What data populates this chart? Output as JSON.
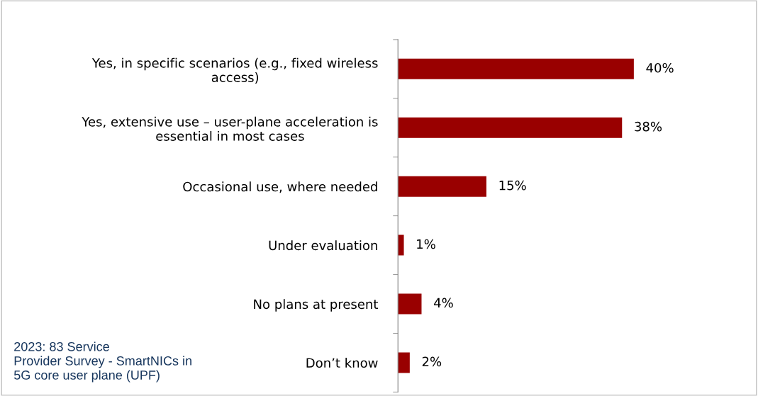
{
  "chart_data": {
    "type": "bar",
    "orientation": "horizontal",
    "categories": [
      "Yes, in specific scenarios (e.g., fixed wireless\naccess)",
      "Yes, extensive use – user-plane acceleration is\nessential in most cases",
      "Occasional use, where needed",
      "Under evaluation",
      "No plans at present",
      "Don’t know"
    ],
    "values": [
      40,
      38,
      15,
      1,
      4,
      2
    ],
    "value_labels": [
      "40%",
      "38%",
      "15%",
      "1%",
      "4%",
      "2%"
    ],
    "color": "#990000",
    "grid": false,
    "legend": false,
    "annotations": [
      "2023: 83 Service\nProvider Survey - SmartNICs in\n5G core user plane (UPF)"
    ]
  }
}
